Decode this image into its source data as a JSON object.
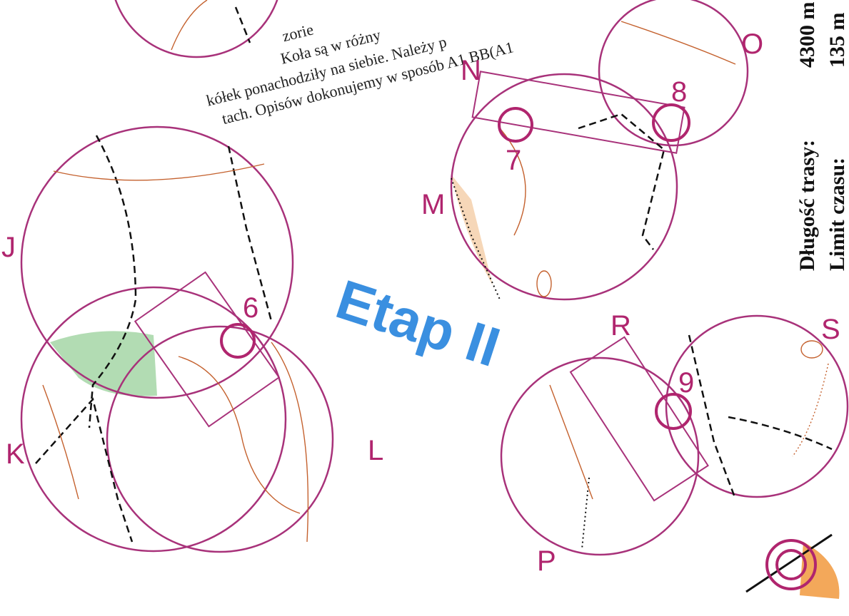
{
  "text_fragments": [
    "zorie",
    "Koła są w różny",
    "kółek ponachodziły na siebie. Należy p",
    "tach. Opisów dokonujemy w sposób A1 BB(A1"
  ],
  "title": "Etap II",
  "circle_labels": [
    "J",
    "K",
    "L",
    "M",
    "N",
    "O",
    "P",
    "R",
    "S"
  ],
  "control_numbers": [
    "6",
    "7",
    "8",
    "9"
  ],
  "course_info": {
    "length_label": "Długość trasy:",
    "length_value": "4300 m",
    "time_label": "Limit czasu:",
    "time_value": "135 m"
  }
}
